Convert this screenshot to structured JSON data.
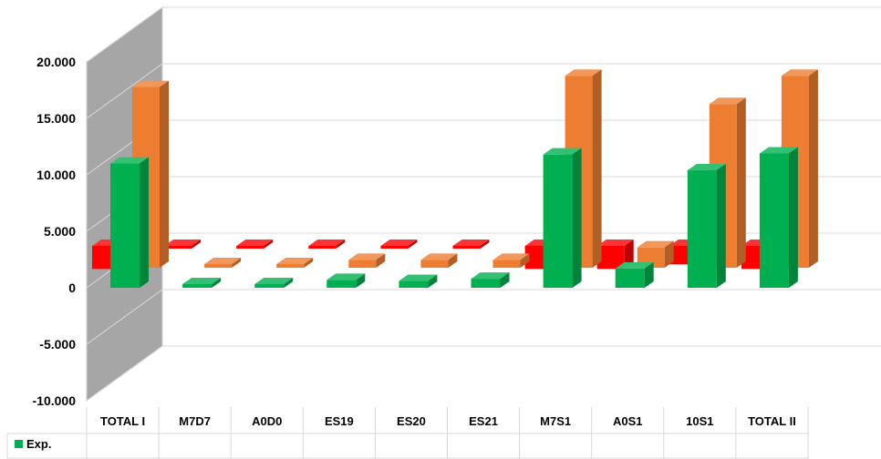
{
  "chart_data": {
    "type": "bar",
    "title": "",
    "xlabel": "",
    "ylabel": "",
    "ylim": [
      -10000,
      20000
    ],
    "y_ticks": [
      "20.000",
      "15.000",
      "10.000",
      "5.000",
      "0",
      "-5.000",
      "-10.000"
    ],
    "y_tick_values": [
      20000,
      15000,
      10000,
      5000,
      0,
      -5000,
      -10000
    ],
    "categories": [
      "TOTAL I",
      "M7D7",
      "A0D0",
      "ES19",
      "ES20",
      "ES21",
      "M7S1",
      "A0S1",
      "10S1",
      "TOTAL II"
    ],
    "grid": true,
    "legend_position": "data-table-below",
    "series": [
      {
        "name": "Exp.",
        "color": "#00b050",
        "values": [
          11000,
          300,
          200,
          700,
          600,
          800,
          11800,
          1700,
          10400,
          11900
        ]
      },
      {
        "name": "",
        "color": "#ed7d31",
        "values": [
          16000,
          300,
          300,
          700,
          700,
          700,
          17000,
          1800,
          14500,
          17000
        ]
      },
      {
        "name": "",
        "color": "#ff0000",
        "values": [
          -5100,
          0,
          0,
          0,
          0,
          0,
          -5100,
          -5100,
          -4100,
          -5100
        ]
      }
    ]
  }
}
